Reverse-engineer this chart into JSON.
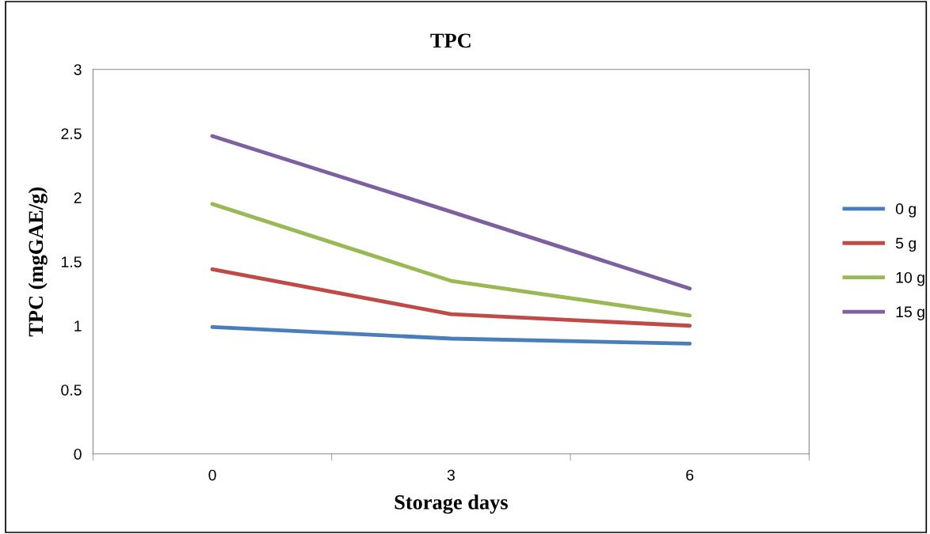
{
  "chart_data": {
    "type": "line",
    "title": "TPC",
    "xlabel": "Storage days",
    "ylabel": "TPC (mgGAE/g)",
    "categories": [
      "0",
      "3",
      "6"
    ],
    "series": [
      {
        "name": "0 g",
        "color": "#4a7ebb",
        "values": [
          0.99,
          0.9,
          0.86
        ]
      },
      {
        "name": "5 g",
        "color": "#be4b48",
        "values": [
          1.44,
          1.09,
          1.0
        ]
      },
      {
        "name": "10 g",
        "color": "#98b954",
        "values": [
          1.95,
          1.35,
          1.08
        ]
      },
      {
        "name": "15 g",
        "color": "#7d60a0",
        "values": [
          2.48,
          1.89,
          1.29
        ]
      }
    ],
    "ylim": [
      0,
      3
    ],
    "yticks": [
      0,
      0.5,
      1,
      1.5,
      2,
      2.5,
      3
    ],
    "grid": false,
    "legend": "right",
    "marker": "none",
    "line_style": "solid"
  }
}
